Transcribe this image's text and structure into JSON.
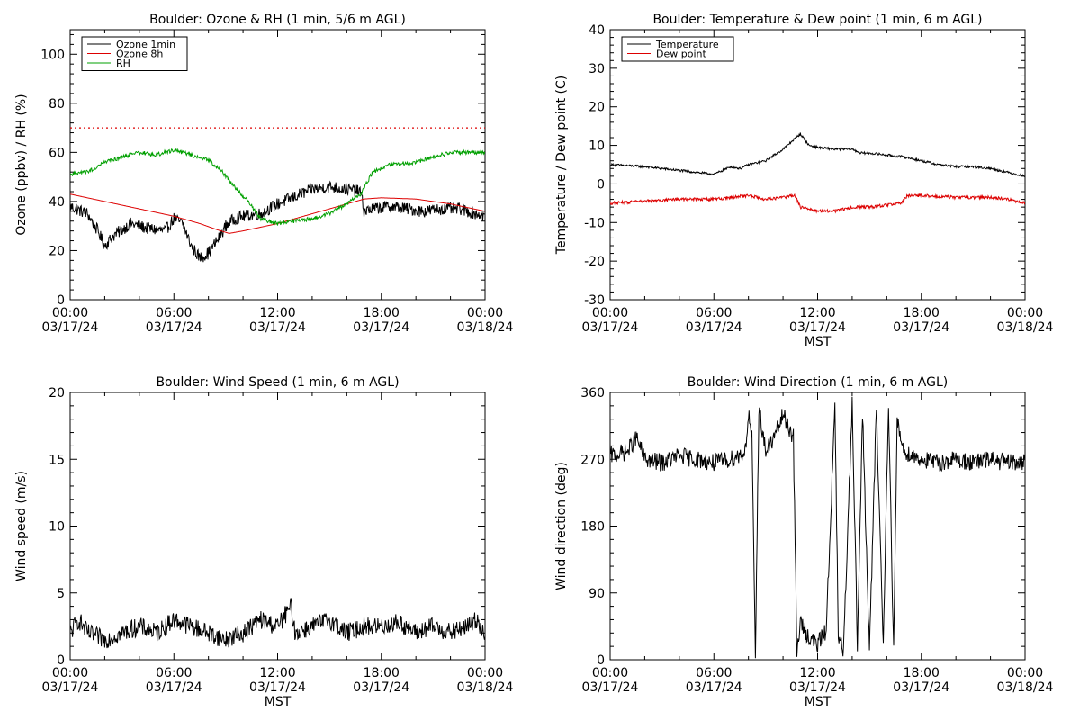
{
  "chart_data": [
    {
      "type": "line",
      "title": "Boulder: Ozone & RH (1 min, 5/6 m AGL)",
      "xlabel": "",
      "ylabel": "Ozone (ppbv) / RH (%)",
      "xlim": [
        "03/17/24 00:00",
        "03/18/24 00:00"
      ],
      "ylim": [
        0,
        110
      ],
      "yticks": [
        0,
        20,
        40,
        60,
        80,
        100
      ],
      "xticks": [
        {
          "time": "00:00",
          "date": "03/17/24"
        },
        {
          "time": "06:00",
          "date": "03/17/24"
        },
        {
          "time": "12:00",
          "date": "03/17/24"
        },
        {
          "time": "18:00",
          "date": "03/17/24"
        },
        {
          "time": "00:00",
          "date": "03/18/24"
        }
      ],
      "legend": "top-left",
      "reference_line": {
        "y": 70,
        "color": "#dd0000",
        "style": "dotted"
      },
      "series": [
        {
          "name": "Ozone 1min",
          "color": "#000000",
          "noise": 2.5,
          "points": [
            [
              0,
              38
            ],
            [
              1,
              35
            ],
            [
              1.6,
              28
            ],
            [
              2,
              22
            ],
            [
              2.5,
              26
            ],
            [
              3.5,
              31
            ],
            [
              4.5,
              29
            ],
            [
              5.5,
              28
            ],
            [
              6,
              33
            ],
            [
              6.5,
              31
            ],
            [
              7,
              22
            ],
            [
              7.5,
              17
            ],
            [
              8,
              19
            ],
            [
              8.5,
              24
            ],
            [
              9,
              30
            ],
            [
              9.5,
              33
            ],
            [
              10,
              34
            ],
            [
              11,
              35
            ],
            [
              12,
              39
            ],
            [
              13,
              42
            ],
            [
              14,
              45
            ],
            [
              15,
              46
            ],
            [
              16,
              45
            ],
            [
              16.8,
              44
            ],
            [
              17,
              36
            ],
            [
              17.5,
              37
            ],
            [
              18.5,
              38
            ],
            [
              19.5,
              37
            ],
            [
              20.5,
              36
            ],
            [
              21.5,
              37
            ],
            [
              22.5,
              37
            ],
            [
              23.5,
              35
            ],
            [
              24,
              34
            ]
          ]
        },
        {
          "name": "Ozone 8h",
          "color": "#dd0000",
          "noise": 0,
          "points": [
            [
              0,
              43
            ],
            [
              2,
              40
            ],
            [
              4,
              37
            ],
            [
              6,
              34
            ],
            [
              7.5,
              31
            ],
            [
              8.5,
              28.5
            ],
            [
              9.2,
              27
            ],
            [
              10,
              28
            ],
            [
              12,
              31
            ],
            [
              14,
              35
            ],
            [
              16,
              39
            ],
            [
              17,
              41
            ],
            [
              18,
              41.5
            ],
            [
              20,
              41
            ],
            [
              22,
              39
            ],
            [
              24,
              36
            ]
          ]
        },
        {
          "name": "RH",
          "color": "#00a000",
          "noise": 0.8,
          "points": [
            [
              0,
              51
            ],
            [
              1,
              52
            ],
            [
              2,
              56
            ],
            [
              3,
              58
            ],
            [
              4,
              60
            ],
            [
              5,
              59
            ],
            [
              6,
              61
            ],
            [
              7,
              59
            ],
            [
              8,
              57
            ],
            [
              8.8,
              52
            ],
            [
              9.5,
              46
            ],
            [
              10.3,
              40
            ],
            [
              11,
              33
            ],
            [
              12,
              31
            ],
            [
              13,
              32
            ],
            [
              14,
              33
            ],
            [
              15,
              35
            ],
            [
              16,
              39
            ],
            [
              16.8,
              43
            ],
            [
              17.5,
              52
            ],
            [
              18.5,
              55
            ],
            [
              20,
              56
            ],
            [
              21,
              58
            ],
            [
              22,
              60
            ],
            [
              23,
              60
            ],
            [
              24,
              60
            ]
          ]
        }
      ]
    },
    {
      "type": "line",
      "title": "Boulder: Temperature & Dew point (1 min, 6 m AGL)",
      "xlabel": "MST",
      "ylabel": "Temperature / Dew point (C)",
      "xlim": [
        "03/17/24 00:00",
        "03/18/24 00:00"
      ],
      "ylim": [
        -30,
        40
      ],
      "yticks": [
        -30,
        -20,
        -10,
        0,
        10,
        20,
        30,
        40
      ],
      "xticks": [
        {
          "time": "00:00",
          "date": "03/17/24"
        },
        {
          "time": "06:00",
          "date": "03/17/24"
        },
        {
          "time": "12:00",
          "date": "03/17/24"
        },
        {
          "time": "18:00",
          "date": "03/17/24"
        },
        {
          "time": "00:00",
          "date": "03/18/24"
        }
      ],
      "legend": "top-left",
      "series": [
        {
          "name": "Temperature",
          "color": "#000000",
          "noise": 0.3,
          "points": [
            [
              0,
              5
            ],
            [
              2,
              4.5
            ],
            [
              4,
              3.5
            ],
            [
              6,
              2.5
            ],
            [
              6.5,
              3.5
            ],
            [
              7,
              4.5
            ],
            [
              7.5,
              4
            ],
            [
              8,
              5
            ],
            [
              9,
              6
            ],
            [
              10,
              9
            ],
            [
              10.5,
              11
            ],
            [
              11,
              13
            ],
            [
              11.5,
              10
            ],
            [
              12,
              9.5
            ],
            [
              13,
              9
            ],
            [
              14,
              9
            ],
            [
              14.5,
              8
            ],
            [
              15,
              8
            ],
            [
              16,
              7.5
            ],
            [
              17,
              7
            ],
            [
              18,
              6
            ],
            [
              19,
              5
            ],
            [
              20,
              4.5
            ],
            [
              21,
              4.5
            ],
            [
              22,
              4
            ],
            [
              23,
              3
            ],
            [
              24,
              2
            ]
          ]
        },
        {
          "name": "Dew point",
          "color": "#dd0000",
          "noise": 0.4,
          "points": [
            [
              0,
              -5
            ],
            [
              2,
              -4.5
            ],
            [
              4,
              -4
            ],
            [
              6,
              -4
            ],
            [
              7,
              -3.5
            ],
            [
              8,
              -3
            ],
            [
              9,
              -4
            ],
            [
              10,
              -3.5
            ],
            [
              10.7,
              -3
            ],
            [
              11,
              -6
            ],
            [
              12,
              -7
            ],
            [
              13,
              -7
            ],
            [
              14,
              -6
            ],
            [
              15,
              -6
            ],
            [
              16,
              -5.5
            ],
            [
              16.8,
              -5
            ],
            [
              17.2,
              -3
            ],
            [
              18,
              -3
            ],
            [
              20,
              -3.5
            ],
            [
              22,
              -3.5
            ],
            [
              23,
              -4
            ],
            [
              24,
              -5
            ]
          ]
        }
      ]
    },
    {
      "type": "line",
      "title": "Boulder: Wind Speed (1 min, 6 m AGL)",
      "xlabel": "MST",
      "ylabel": "Wind speed (m/s)",
      "xlim": [
        "03/17/24 00:00",
        "03/18/24 00:00"
      ],
      "ylim": [
        0,
        20
      ],
      "yticks": [
        0,
        5,
        10,
        15,
        20
      ],
      "xticks": [
        {
          "time": "00:00",
          "date": "03/17/24"
        },
        {
          "time": "06:00",
          "date": "03/17/24"
        },
        {
          "time": "12:00",
          "date": "03/17/24"
        },
        {
          "time": "18:00",
          "date": "03/17/24"
        },
        {
          "time": "00:00",
          "date": "03/18/24"
        }
      ],
      "series": [
        {
          "name": "",
          "color": "#000000",
          "noise": 0.7,
          "points": [
            [
              0,
              2
            ],
            [
              0.5,
              3
            ],
            [
              1,
              2
            ],
            [
              2,
              1.5
            ],
            [
              3,
              2
            ],
            [
              4,
              2.5
            ],
            [
              5,
              2
            ],
            [
              6,
              3
            ],
            [
              7,
              2.5
            ],
            [
              8,
              2
            ],
            [
              9,
              1.5
            ],
            [
              10,
              2
            ],
            [
              11,
              3
            ],
            [
              12,
              2.5
            ],
            [
              12.8,
              4
            ],
            [
              13,
              2
            ],
            [
              14,
              2.5
            ],
            [
              15,
              3
            ],
            [
              16,
              2
            ],
            [
              17,
              2.5
            ],
            [
              18,
              2.5
            ],
            [
              19,
              2.8
            ],
            [
              20,
              2
            ],
            [
              21,
              2.5
            ],
            [
              22,
              2
            ],
            [
              23,
              2.5
            ],
            [
              23.5,
              3
            ],
            [
              24,
              2
            ]
          ]
        }
      ]
    },
    {
      "type": "line",
      "title": "Boulder: Wind Direction (1 min, 6 m AGL)",
      "xlabel": "MST",
      "ylabel": "Wind direction (deg)",
      "xlim": [
        "03/17/24 00:00",
        "03/18/24 00:00"
      ],
      "ylim": [
        0,
        360
      ],
      "yticks": [
        0,
        90,
        180,
        270,
        360
      ],
      "xticks": [
        {
          "time": "00:00",
          "date": "03/17/24"
        },
        {
          "time": "06:00",
          "date": "03/17/24"
        },
        {
          "time": "12:00",
          "date": "03/17/24"
        },
        {
          "time": "18:00",
          "date": "03/17/24"
        },
        {
          "time": "00:00",
          "date": "03/18/24"
        }
      ],
      "series": [
        {
          "name": "",
          "color": "#000000",
          "noise": 12,
          "points": [
            [
              0,
              275
            ],
            [
              1,
              280
            ],
            [
              1.5,
              300
            ],
            [
              2,
              270
            ],
            [
              3,
              265
            ],
            [
              4,
              275
            ],
            [
              5,
              270
            ],
            [
              6,
              265
            ],
            [
              7,
              270
            ],
            [
              7.8,
              280
            ],
            [
              8,
              330
            ],
            [
              8.2,
              300
            ],
            [
              8.4,
              0
            ],
            [
              8.6,
              340
            ],
            [
              9,
              280
            ],
            [
              9.5,
              300
            ],
            [
              10,
              330
            ],
            [
              10.6,
              300
            ],
            [
              10.8,
              10
            ],
            [
              11,
              50
            ],
            [
              11.5,
              30
            ],
            [
              12,
              20
            ],
            [
              12.5,
              40
            ],
            [
              13,
              340
            ],
            [
              13.2,
              30
            ],
            [
              13.5,
              10
            ],
            [
              14,
              350
            ],
            [
              14.3,
              20
            ],
            [
              14.6,
              330
            ],
            [
              15,
              10
            ],
            [
              15.4,
              340
            ],
            [
              15.8,
              20
            ],
            [
              16.1,
              350
            ],
            [
              16.4,
              10
            ],
            [
              16.6,
              320
            ],
            [
              17,
              280
            ],
            [
              18,
              270
            ],
            [
              19,
              265
            ],
            [
              20,
              270
            ],
            [
              21,
              265
            ],
            [
              22,
              270
            ],
            [
              23,
              265
            ],
            [
              24,
              265
            ]
          ]
        }
      ]
    }
  ]
}
